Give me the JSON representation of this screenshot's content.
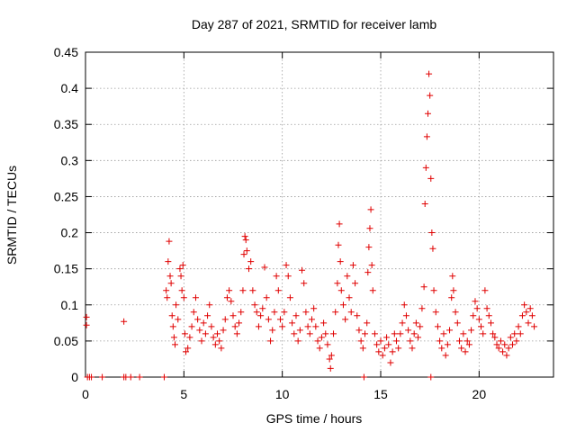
{
  "chart_data": {
    "type": "scatter",
    "title": "Day 287 of 2021, SRMTID for receiver lamb",
    "xlabel": "GPS time / hours",
    "ylabel": "SRMTID / TECUs",
    "xlim": [
      0,
      23.78
    ],
    "ylim": [
      0,
      0.45
    ],
    "x_ticks": [
      0,
      5,
      10,
      15,
      20
    ],
    "y_ticks": [
      0,
      0.05,
      0.1,
      0.15,
      0.2,
      0.25,
      0.3,
      0.35,
      0.4,
      0.45
    ],
    "x_tick_labels": [
      "0",
      "5",
      "10",
      "15",
      "20"
    ],
    "y_tick_labels": [
      "0",
      "0.05",
      "0.1",
      "0.15",
      "0.2",
      "0.25",
      "0.3",
      "0.35",
      "0.4",
      "0.45"
    ],
    "grid": true,
    "marker": "+",
    "color": "#e00000",
    "series": [
      {
        "name": "SRMTID",
        "points": [
          [
            0.05,
            0.083
          ],
          [
            0.05,
            0.072
          ],
          [
            0.1,
            0
          ],
          [
            0.2,
            0
          ],
          [
            0.3,
            0
          ],
          [
            0.85,
            0
          ],
          [
            1.95,
            0.077
          ],
          [
            1.95,
            0
          ],
          [
            2.05,
            0
          ],
          [
            2.3,
            0
          ],
          [
            2.75,
            0
          ],
          [
            4.0,
            0
          ],
          [
            4.1,
            0.12
          ],
          [
            4.15,
            0.11
          ],
          [
            4.2,
            0.16
          ],
          [
            4.25,
            0.188
          ],
          [
            4.3,
            0.14
          ],
          [
            4.35,
            0.13
          ],
          [
            4.4,
            0.085
          ],
          [
            4.45,
            0.07
          ],
          [
            4.5,
            0.055
          ],
          [
            4.55,
            0.045
          ],
          [
            4.6,
            0.1
          ],
          [
            4.7,
            0.08
          ],
          [
            4.8,
            0.15
          ],
          [
            4.85,
            0.14
          ],
          [
            4.9,
            0.12
          ],
          [
            4.95,
            0.155
          ],
          [
            5.0,
            0.11
          ],
          [
            5.05,
            0.06
          ],
          [
            5.1,
            0.035
          ],
          [
            5.2,
            0.04
          ],
          [
            5.3,
            0.055
          ],
          [
            5.4,
            0.07
          ],
          [
            5.5,
            0.09
          ],
          [
            5.6,
            0.11
          ],
          [
            5.7,
            0.08
          ],
          [
            5.8,
            0.065
          ],
          [
            5.9,
            0.05
          ],
          [
            6.0,
            0.075
          ],
          [
            6.1,
            0.06
          ],
          [
            6.2,
            0.085
          ],
          [
            6.3,
            0.1
          ],
          [
            6.4,
            0.07
          ],
          [
            6.5,
            0.055
          ],
          [
            6.6,
            0.045
          ],
          [
            6.7,
            0.06
          ],
          [
            6.8,
            0.05
          ],
          [
            6.9,
            0.04
          ],
          [
            7.0,
            0.065
          ],
          [
            7.1,
            0.08
          ],
          [
            7.2,
            0.11
          ],
          [
            7.3,
            0.12
          ],
          [
            7.4,
            0.105
          ],
          [
            7.5,
            0.085
          ],
          [
            7.6,
            0.07
          ],
          [
            7.7,
            0.06
          ],
          [
            7.8,
            0.075
          ],
          [
            7.9,
            0.09
          ],
          [
            8.0,
            0.12
          ],
          [
            8.05,
            0.17
          ],
          [
            8.1,
            0.195
          ],
          [
            8.15,
            0.19
          ],
          [
            8.2,
            0.175
          ],
          [
            8.3,
            0.15
          ],
          [
            8.4,
            0.16
          ],
          [
            8.5,
            0.12
          ],
          [
            8.6,
            0.1
          ],
          [
            8.7,
            0.09
          ],
          [
            8.8,
            0.07
          ],
          [
            8.9,
            0.085
          ],
          [
            9.0,
            0.095
          ],
          [
            9.1,
            0.152
          ],
          [
            9.2,
            0.11
          ],
          [
            9.3,
            0.08
          ],
          [
            9.4,
            0.05
          ],
          [
            9.5,
            0.065
          ],
          [
            9.6,
            0.09
          ],
          [
            9.7,
            0.14
          ],
          [
            9.8,
            0.12
          ],
          [
            9.9,
            0.08
          ],
          [
            10.0,
            0.07
          ],
          [
            10.1,
            0.09
          ],
          [
            10.2,
            0.155
          ],
          [
            10.3,
            0.14
          ],
          [
            10.4,
            0.11
          ],
          [
            10.5,
            0.075
          ],
          [
            10.6,
            0.06
          ],
          [
            10.7,
            0.085
          ],
          [
            10.8,
            0.05
          ],
          [
            10.9,
            0.065
          ],
          [
            11.0,
            0.148
          ],
          [
            11.1,
            0.13
          ],
          [
            11.2,
            0.09
          ],
          [
            11.3,
            0.07
          ],
          [
            11.4,
            0.06
          ],
          [
            11.5,
            0.08
          ],
          [
            11.6,
            0.095
          ],
          [
            11.7,
            0.07
          ],
          [
            11.8,
            0.05
          ],
          [
            11.9,
            0.04
          ],
          [
            12.0,
            0.055
          ],
          [
            12.1,
            0.075
          ],
          [
            12.2,
            0.06
          ],
          [
            12.3,
            0.045
          ],
          [
            12.4,
            0.025
          ],
          [
            12.45,
            0.012
          ],
          [
            12.5,
            0.03
          ],
          [
            12.6,
            0.06
          ],
          [
            12.7,
            0.09
          ],
          [
            12.8,
            0.13
          ],
          [
            12.85,
            0.183
          ],
          [
            12.9,
            0.212
          ],
          [
            12.95,
            0.16
          ],
          [
            13.0,
            0.12
          ],
          [
            13.1,
            0.1
          ],
          [
            13.2,
            0.08
          ],
          [
            13.3,
            0.14
          ],
          [
            13.4,
            0.11
          ],
          [
            13.5,
            0.09
          ],
          [
            13.6,
            0.155
          ],
          [
            13.7,
            0.13
          ],
          [
            13.8,
            0.085
          ],
          [
            13.9,
            0.065
          ],
          [
            14.0,
            0.05
          ],
          [
            14.1,
            0.04
          ],
          [
            14.15,
            0
          ],
          [
            14.2,
            0.06
          ],
          [
            14.3,
            0.075
          ],
          [
            14.35,
            0.145
          ],
          [
            14.4,
            0.18
          ],
          [
            14.45,
            0.206
          ],
          [
            14.5,
            0.232
          ],
          [
            14.55,
            0.155
          ],
          [
            14.6,
            0.12
          ],
          [
            14.7,
            0.06
          ],
          [
            14.8,
            0.045
          ],
          [
            14.9,
            0.035
          ],
          [
            15.0,
            0.05
          ],
          [
            15.1,
            0.03
          ],
          [
            15.2,
            0.04
          ],
          [
            15.3,
            0.055
          ],
          [
            15.4,
            0.045
          ],
          [
            15.5,
            0.02
          ],
          [
            15.6,
            0.035
          ],
          [
            15.7,
            0.06
          ],
          [
            15.8,
            0.05
          ],
          [
            15.9,
            0.04
          ],
          [
            16.0,
            0.06
          ],
          [
            16.1,
            0.075
          ],
          [
            16.2,
            0.1
          ],
          [
            16.3,
            0.085
          ],
          [
            16.4,
            0.065
          ],
          [
            16.5,
            0.05
          ],
          [
            16.6,
            0.04
          ],
          [
            16.7,
            0.06
          ],
          [
            16.8,
            0.075
          ],
          [
            16.9,
            0.055
          ],
          [
            17.0,
            0.07
          ],
          [
            17.1,
            0.095
          ],
          [
            17.2,
            0.125
          ],
          [
            17.25,
            0.24
          ],
          [
            17.3,
            0.29
          ],
          [
            17.35,
            0.333
          ],
          [
            17.4,
            0.365
          ],
          [
            17.45,
            0.42
          ],
          [
            17.5,
            0.39
          ],
          [
            17.55,
            0.275
          ],
          [
            17.6,
            0.2
          ],
          [
            17.65,
            0.178
          ],
          [
            17.7,
            0.12
          ],
          [
            17.55,
            0
          ],
          [
            17.8,
            0.09
          ],
          [
            17.9,
            0.07
          ],
          [
            18.0,
            0.05
          ],
          [
            18.1,
            0.04
          ],
          [
            18.2,
            0.06
          ],
          [
            18.3,
            0.03
          ],
          [
            18.4,
            0.045
          ],
          [
            18.5,
            0.065
          ],
          [
            18.6,
            0.11
          ],
          [
            18.65,
            0.14
          ],
          [
            18.7,
            0.12
          ],
          [
            18.8,
            0.09
          ],
          [
            18.9,
            0.075
          ],
          [
            19.0,
            0.05
          ],
          [
            19.1,
            0.04
          ],
          [
            19.2,
            0.06
          ],
          [
            19.3,
            0.035
          ],
          [
            19.4,
            0.05
          ],
          [
            19.5,
            0.045
          ],
          [
            19.6,
            0.065
          ],
          [
            19.7,
            0.085
          ],
          [
            19.8,
            0.105
          ],
          [
            19.9,
            0.095
          ],
          [
            20.0,
            0.08
          ],
          [
            20.1,
            0.07
          ],
          [
            20.2,
            0.06
          ],
          [
            20.3,
            0.12
          ],
          [
            20.4,
            0.095
          ],
          [
            20.5,
            0.085
          ],
          [
            20.6,
            0.075
          ],
          [
            20.7,
            0.06
          ],
          [
            20.8,
            0.055
          ],
          [
            20.9,
            0.045
          ],
          [
            21.0,
            0.04
          ],
          [
            21.1,
            0.05
          ],
          [
            21.2,
            0.035
          ],
          [
            21.3,
            0.045
          ],
          [
            21.4,
            0.03
          ],
          [
            21.5,
            0.04
          ],
          [
            21.6,
            0.055
          ],
          [
            21.7,
            0.045
          ],
          [
            21.8,
            0.06
          ],
          [
            21.9,
            0.05
          ],
          [
            22.0,
            0.07
          ],
          [
            22.1,
            0.06
          ],
          [
            22.2,
            0.085
          ],
          [
            22.3,
            0.1
          ],
          [
            22.4,
            0.09
          ],
          [
            22.5,
            0.075
          ],
          [
            22.6,
            0.095
          ],
          [
            22.7,
            0.085
          ],
          [
            22.8,
            0.07
          ]
        ]
      }
    ]
  }
}
